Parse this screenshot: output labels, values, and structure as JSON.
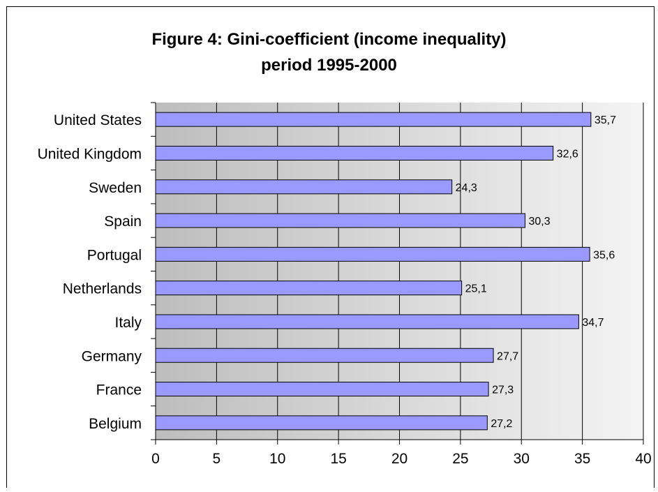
{
  "chart_data": {
    "type": "bar",
    "orientation": "horizontal",
    "title": "Figure 4: Gini-coefficient (income inequality)",
    "subtitle": "period 1995-2000",
    "xlabel": "",
    "ylabel": "",
    "categories": [
      "United States",
      "United Kingdom",
      "Sweden",
      "Spain",
      "Portugal",
      "Netherlands",
      "Italy",
      "Germany",
      "France",
      "Belgium"
    ],
    "values": [
      35.7,
      32.6,
      24.3,
      30.3,
      35.6,
      25.1,
      34.7,
      27.7,
      27.3,
      27.2
    ],
    "data_labels": [
      "35,7",
      "32,6",
      "24,3",
      "30,3",
      "35,6",
      "25,1",
      "34,7",
      "27,7",
      "27,3",
      "27,2"
    ],
    "xlim": [
      0,
      40
    ],
    "xticks": [
      "0",
      "5",
      "10",
      "15",
      "20",
      "25",
      "30",
      "35",
      "40"
    ],
    "grid": true,
    "legend": "none",
    "colors": {
      "bar_fill": "#9999ff",
      "bar_stroke": "#000000",
      "gridline": "#000000",
      "plot_bg_left": "#bdbdbd",
      "plot_bg_right": "#f4f4f4"
    }
  }
}
